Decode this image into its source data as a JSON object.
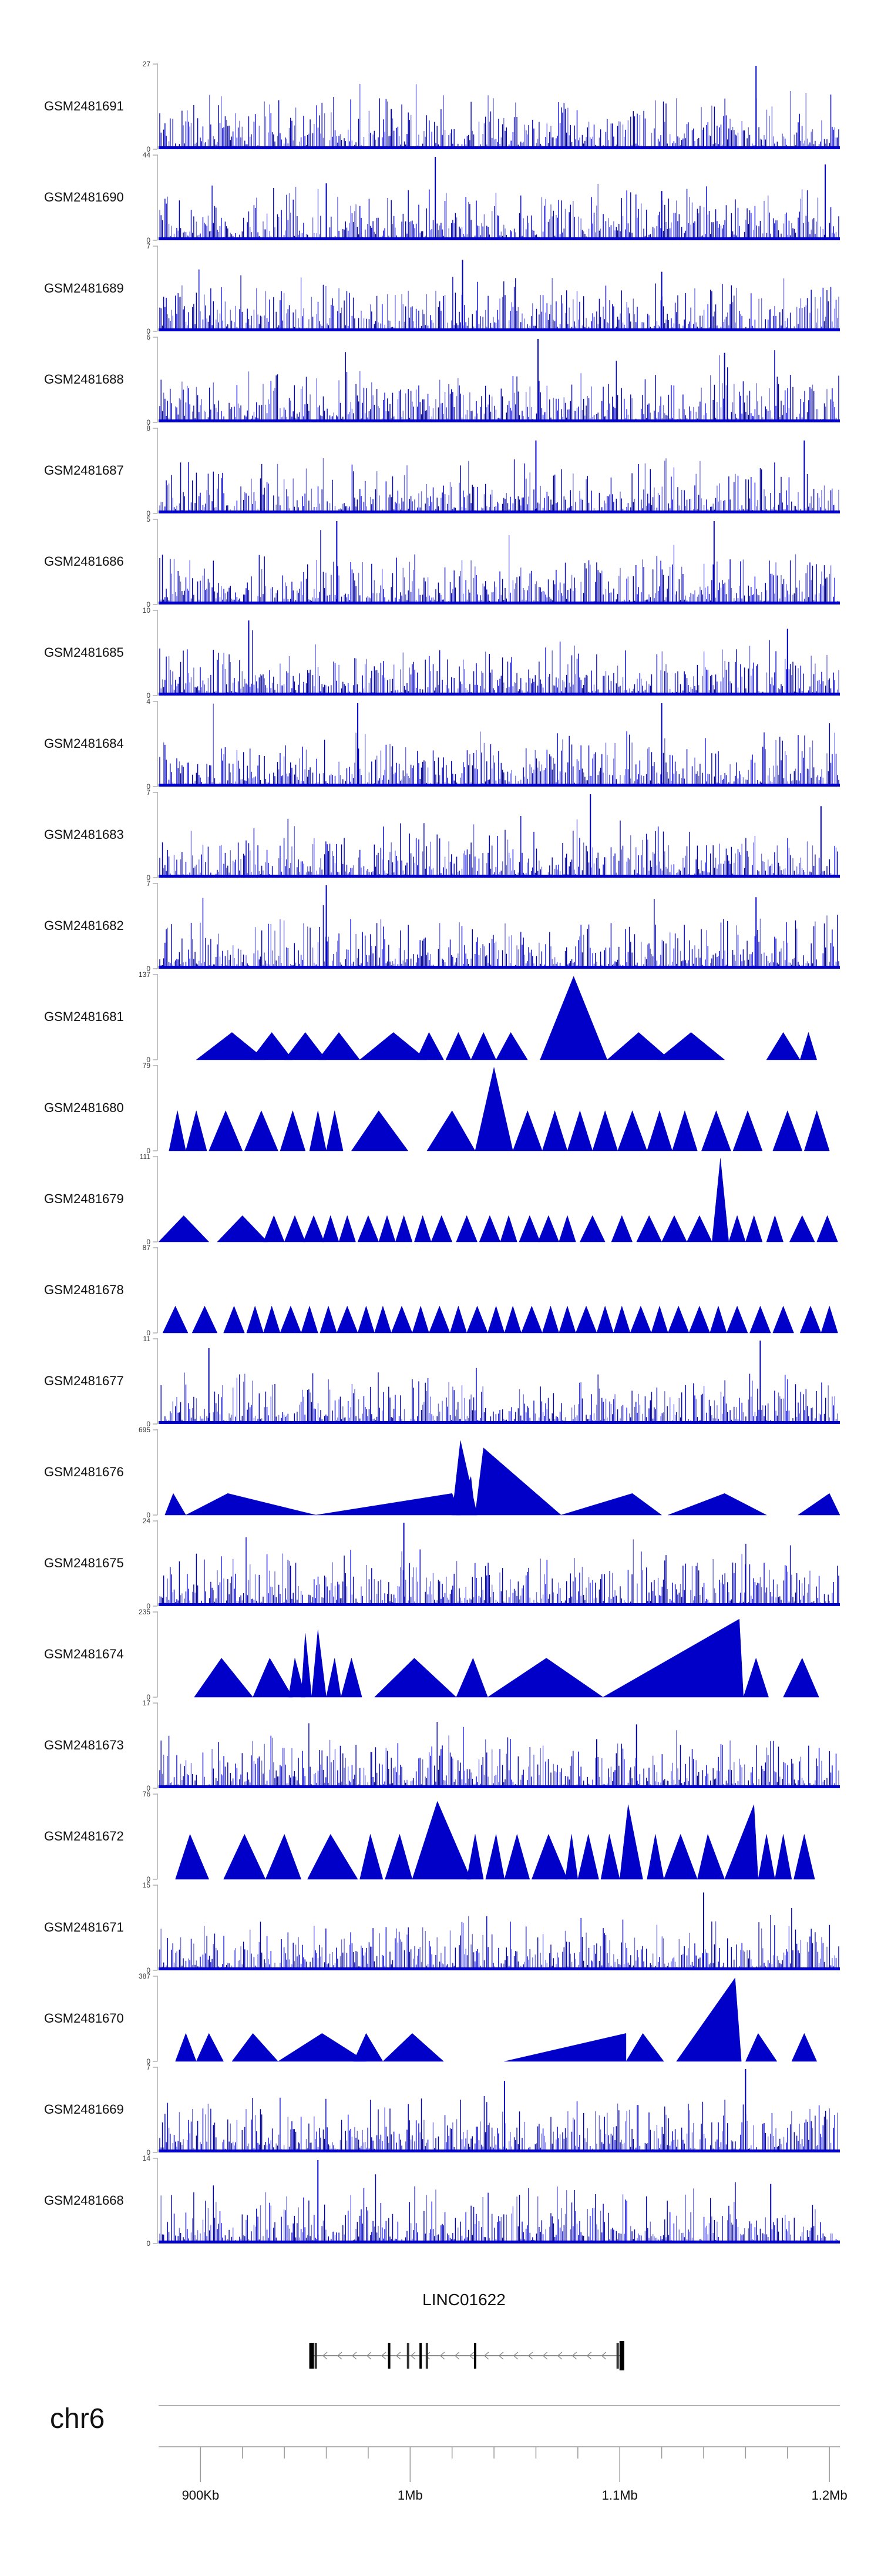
{
  "region": {
    "chromosome": "chr6",
    "range_kb": [
      880,
      1205
    ],
    "ticks": [
      {
        "kb": 900,
        "label": "900Kb"
      },
      {
        "kb": 1000,
        "label": "1Mb"
      },
      {
        "kb": 1100,
        "label": "1.1Mb"
      },
      {
        "kb": 1200,
        "label": "1.2Mb"
      }
    ],
    "minor_ticks_kb": [
      920,
      940,
      960,
      980,
      1020,
      1040,
      1060,
      1080,
      1120,
      1140,
      1160,
      1180
    ]
  },
  "gene": {
    "name": "LINC01622",
    "start_kb": 953,
    "end_kb": 1101,
    "strand": "-",
    "exons_kb": [
      953,
      955,
      990,
      999,
      1005,
      1008,
      1031,
      1099,
      1101
    ]
  },
  "colors": {
    "signal": "#0000c8",
    "signal_light": "#6f6fe0",
    "axis": "#888888",
    "text": "#111111"
  },
  "chart_data": [
    {
      "type": "area",
      "title": "GSM2481691",
      "ylim": [
        0,
        27
      ],
      "style": "dense",
      "peaks": [
        {
          "x_kb": 991,
          "y": 13
        },
        {
          "x_kb": 1165,
          "y": 27
        },
        {
          "x_kb": 1140,
          "y": 7
        }
      ]
    },
    {
      "type": "area",
      "title": "GSM2481690",
      "ylim": [
        0,
        44
      ],
      "style": "dense",
      "peaks": [
        {
          "x_kb": 1012,
          "y": 44
        },
        {
          "x_kb": 1198,
          "y": 40
        },
        {
          "x_kb": 960,
          "y": 30
        },
        {
          "x_kb": 1120,
          "y": 26
        }
      ]
    },
    {
      "type": "area",
      "title": "GSM2481689",
      "ylim": [
        0,
        7
      ],
      "style": "dense",
      "peaks": [
        {
          "x_kb": 1025,
          "y": 6
        },
        {
          "x_kb": 1120,
          "y": 5
        }
      ]
    },
    {
      "type": "area",
      "title": "GSM2481688",
      "ylim": [
        0,
        6
      ],
      "style": "dense",
      "peaks": [
        {
          "x_kb": 1061,
          "y": 6
        },
        {
          "x_kb": 1150,
          "y": 5
        }
      ]
    },
    {
      "type": "area",
      "title": "GSM2481687",
      "ylim": [
        0,
        8
      ],
      "style": "dense",
      "peaks": [
        {
          "x_kb": 1060,
          "y": 7
        },
        {
          "x_kb": 1188,
          "y": 7
        }
      ]
    },
    {
      "type": "area",
      "title": "GSM2481686",
      "ylim": [
        0,
        5
      ],
      "style": "dense",
      "peaks": [
        {
          "x_kb": 965,
          "y": 5
        },
        {
          "x_kb": 1145,
          "y": 5
        }
      ]
    },
    {
      "type": "area",
      "title": "GSM2481685",
      "ylim": [
        0,
        10
      ],
      "style": "dense",
      "peaks": [
        {
          "x_kb": 923,
          "y": 9
        },
        {
          "x_kb": 1180,
          "y": 8
        }
      ]
    },
    {
      "type": "area",
      "title": "GSM2481684",
      "ylim": [
        0,
        4
      ],
      "style": "dense",
      "peaks": [
        {
          "x_kb": 1120,
          "y": 4
        },
        {
          "x_kb": 975,
          "y": 4
        }
      ]
    },
    {
      "type": "area",
      "title": "GSM2481683",
      "ylim": [
        0,
        7
      ],
      "style": "dense",
      "peaks": [
        {
          "x_kb": 1086,
          "y": 7
        },
        {
          "x_kb": 1196,
          "y": 6
        }
      ]
    },
    {
      "type": "area",
      "title": "GSM2481682",
      "ylim": [
        0,
        7
      ],
      "style": "dense",
      "peaks": [
        {
          "x_kb": 960,
          "y": 7
        },
        {
          "x_kb": 1165,
          "y": 6
        }
      ]
    },
    {
      "type": "area",
      "title": "GSM2481681",
      "ylim": [
        0,
        137
      ],
      "style": "triangles",
      "triangles": [
        [
          898,
          915,
          931,
          45
        ],
        [
          924,
          934,
          944,
          45
        ],
        [
          940,
          950,
          960,
          45
        ],
        [
          956,
          966,
          976,
          45
        ],
        [
          976,
          992,
          1008,
          45
        ],
        [
          1003,
          1009,
          1016,
          45
        ],
        [
          1017,
          1023,
          1029,
          45
        ],
        [
          1029,
          1035,
          1041,
          45
        ],
        [
          1041,
          1048,
          1056,
          45
        ],
        [
          1062,
          1078,
          1094,
          137
        ],
        [
          1094,
          1109,
          1124,
          45
        ],
        [
          1118,
          1134,
          1150,
          45
        ],
        [
          1170,
          1178,
          1186,
          45
        ],
        [
          1186,
          1190,
          1194,
          45
        ]
      ]
    },
    {
      "type": "area",
      "title": "GSM2481680",
      "ylim": [
        0,
        79
      ],
      "style": "triangles",
      "triangles": [
        [
          885,
          889,
          893,
          38
        ],
        [
          893,
          898,
          903,
          38
        ],
        [
          904,
          912,
          920,
          38
        ],
        [
          921,
          929,
          937,
          38
        ],
        [
          938,
          944,
          950,
          38
        ],
        [
          952,
          956,
          960,
          38
        ],
        [
          960,
          964,
          968,
          38
        ],
        [
          972,
          985,
          999,
          38
        ],
        [
          1008,
          1020,
          1031,
          38
        ],
        [
          1031,
          1040,
          1049,
          79
        ],
        [
          1049,
          1056,
          1063,
          38
        ],
        [
          1063,
          1069,
          1075,
          38
        ],
        [
          1075,
          1081,
          1087,
          38
        ],
        [
          1087,
          1093,
          1099,
          38
        ],
        [
          1099,
          1106,
          1113,
          38
        ],
        [
          1113,
          1119,
          1125,
          38
        ],
        [
          1125,
          1131,
          1137,
          38
        ],
        [
          1139,
          1146,
          1153,
          38
        ],
        [
          1154,
          1161,
          1168,
          38
        ],
        [
          1173,
          1180,
          1187,
          38
        ],
        [
          1188,
          1194,
          1200,
          38
        ]
      ]
    },
    {
      "type": "area",
      "title": "GSM2481679",
      "ylim": [
        0,
        111
      ],
      "style": "triangles",
      "triangles": [
        [
          880,
          892,
          904,
          35
        ],
        [
          908,
          920,
          932,
          35
        ],
        [
          930,
          935,
          940,
          35
        ],
        [
          940,
          945,
          950,
          35
        ],
        [
          949,
          954,
          959,
          35
        ],
        [
          958,
          962,
          966,
          35
        ],
        [
          966,
          970,
          974,
          35
        ],
        [
          975,
          980,
          985,
          35
        ],
        [
          985,
          989,
          993,
          35
        ],
        [
          993,
          997,
          1001,
          35
        ],
        [
          1002,
          1006,
          1010,
          35
        ],
        [
          1010,
          1015,
          1020,
          35
        ],
        [
          1022,
          1027,
          1032,
          35
        ],
        [
          1033,
          1038,
          1043,
          35
        ],
        [
          1043,
          1047,
          1051,
          35
        ],
        [
          1052,
          1057,
          1062,
          35
        ],
        [
          1061,
          1066,
          1071,
          35
        ],
        [
          1071,
          1075,
          1079,
          35
        ],
        [
          1081,
          1087,
          1093,
          35
        ],
        [
          1096,
          1101,
          1106,
          35
        ],
        [
          1108,
          1114,
          1120,
          35
        ],
        [
          1120,
          1126,
          1132,
          35
        ],
        [
          1132,
          1138,
          1144,
          35
        ],
        [
          1144,
          1148,
          1152,
          111
        ],
        [
          1152,
          1156,
          1160,
          35
        ],
        [
          1160,
          1164,
          1168,
          35
        ],
        [
          1170,
          1174,
          1178,
          35
        ],
        [
          1181,
          1187,
          1193,
          35
        ],
        [
          1194,
          1199,
          1204,
          35
        ]
      ]
    },
    {
      "type": "area",
      "title": "GSM2481678",
      "ylim": [
        0,
        87
      ],
      "style": "triangles",
      "triangles": [
        [
          882,
          888,
          894,
          28
        ],
        [
          896,
          902,
          908,
          28
        ],
        [
          911,
          916,
          921,
          28
        ],
        [
          922,
          926,
          930,
          28
        ],
        [
          930,
          934,
          938,
          28
        ],
        [
          938,
          943,
          948,
          28
        ],
        [
          948,
          952,
          956,
          28
        ],
        [
          957,
          961,
          965,
          28
        ],
        [
          965,
          970,
          975,
          28
        ],
        [
          975,
          979,
          983,
          28
        ],
        [
          983,
          987,
          991,
          28
        ],
        [
          991,
          996,
          1001,
          28
        ],
        [
          1001,
          1005,
          1009,
          28
        ],
        [
          1009,
          1014,
          1019,
          28
        ],
        [
          1019,
          1023,
          1027,
          28
        ],
        [
          1027,
          1032,
          1037,
          28
        ],
        [
          1037,
          1041,
          1045,
          28
        ],
        [
          1045,
          1049,
          1053,
          28
        ],
        [
          1053,
          1058,
          1063,
          28
        ],
        [
          1063,
          1067,
          1071,
          28
        ],
        [
          1071,
          1075,
          1079,
          28
        ],
        [
          1079,
          1084,
          1089,
          28
        ],
        [
          1089,
          1093,
          1097,
          28
        ],
        [
          1097,
          1101,
          1105,
          28
        ],
        [
          1105,
          1110,
          1115,
          28
        ],
        [
          1115,
          1119,
          1123,
          28
        ],
        [
          1123,
          1128,
          1133,
          28
        ],
        [
          1133,
          1138,
          1143,
          28
        ],
        [
          1143,
          1147,
          1151,
          28
        ],
        [
          1151,
          1156,
          1161,
          28
        ],
        [
          1162,
          1167,
          1172,
          28
        ],
        [
          1173,
          1178,
          1183,
          28
        ],
        [
          1186,
          1191,
          1196,
          28
        ],
        [
          1196,
          1200,
          1204,
          28
        ]
      ]
    },
    {
      "type": "area",
      "title": "GSM2481677",
      "ylim": [
        0,
        11
      ],
      "style": "dense",
      "peaks": [
        {
          "x_kb": 904,
          "y": 10
        },
        {
          "x_kb": 1167,
          "y": 11
        }
      ]
    },
    {
      "type": "area",
      "title": "GSM2481676",
      "ylim": [
        0,
        695
      ],
      "style": "triangles",
      "triangles": [
        [
          883,
          887,
          893,
          180
        ],
        [
          893,
          913,
          955,
          180
        ],
        [
          955,
          1020,
          1024,
          180
        ],
        [
          1020,
          1024,
          1032,
          620
        ],
        [
          1022,
          1029,
          1031,
          320
        ],
        [
          1031,
          1035,
          1072,
          560
        ],
        [
          1072,
          1106,
          1120,
          180
        ],
        [
          1123,
          1150,
          1170,
          180
        ],
        [
          1185,
          1200,
          1205,
          180
        ]
      ]
    },
    {
      "type": "area",
      "title": "GSM2481675",
      "ylim": [
        0,
        24
      ],
      "style": "dense",
      "peaks": [
        {
          "x_kb": 997,
          "y": 24
        },
        {
          "x_kb": 1160,
          "y": 12
        }
      ]
    },
    {
      "type": "area",
      "title": "GSM2481674",
      "ylim": [
        0,
        235
      ],
      "style": "triangles",
      "triangles": [
        [
          897,
          910,
          925,
          110
        ],
        [
          925,
          933,
          944,
          110
        ],
        [
          942,
          945,
          950,
          110
        ],
        [
          948,
          950,
          953,
          180
        ],
        [
          953,
          956,
          960,
          190
        ],
        [
          960,
          964,
          967,
          110
        ],
        [
          967,
          972,
          977,
          110
        ],
        [
          983,
          1002,
          1022,
          110
        ],
        [
          1022,
          1030,
          1037,
          110
        ],
        [
          1037,
          1065,
          1092,
          110
        ],
        [
          1092,
          1157,
          1159,
          220
        ],
        [
          1159,
          1165,
          1171,
          110
        ],
        [
          1178,
          1187,
          1195,
          110
        ]
      ]
    },
    {
      "type": "area",
      "title": "GSM2481673",
      "ylim": [
        0,
        17
      ],
      "style": "dense",
      "peaks": [
        {
          "x_kb": 1108,
          "y": 13
        },
        {
          "x_kb": 1089,
          "y": 10
        }
      ]
    },
    {
      "type": "area",
      "title": "GSM2481672",
      "ylim": [
        0,
        76
      ],
      "style": "triangles",
      "triangles": [
        [
          888,
          895,
          904,
          41
        ],
        [
          911,
          921,
          931,
          41
        ],
        [
          931,
          940,
          948,
          41
        ],
        [
          951,
          962,
          975,
          41
        ],
        [
          976,
          981,
          987,
          41
        ],
        [
          988,
          995,
          1001,
          41
        ],
        [
          1001,
          1013,
          1029,
          71
        ],
        [
          1027,
          1031,
          1035,
          41
        ],
        [
          1036,
          1041,
          1045,
          41
        ],
        [
          1045,
          1051,
          1057,
          41
        ],
        [
          1058,
          1066,
          1075,
          41
        ],
        [
          1074,
          1077,
          1080,
          41
        ],
        [
          1080,
          1085,
          1090,
          41
        ],
        [
          1091,
          1095,
          1100,
          41
        ],
        [
          1100,
          1104,
          1111,
          68
        ],
        [
          1113,
          1117,
          1121,
          41
        ],
        [
          1121,
          1129,
          1137,
          41
        ],
        [
          1137,
          1142,
          1150,
          41
        ],
        [
          1150,
          1164,
          1166,
          68
        ],
        [
          1166,
          1170,
          1174,
          41
        ],
        [
          1174,
          1178,
          1182,
          41
        ],
        [
          1183,
          1188,
          1193,
          41
        ]
      ]
    },
    {
      "type": "area",
      "title": "GSM2481671",
      "ylim": [
        0,
        15
      ],
      "style": "dense",
      "peaks": [
        {
          "x_kb": 1140,
          "y": 14
        }
      ]
    },
    {
      "type": "area",
      "title": "GSM2481670",
      "ylim": [
        0,
        387
      ],
      "style": "triangles",
      "triangles": [
        [
          888,
          893,
          898,
          130
        ],
        [
          898,
          904,
          911,
          130
        ],
        [
          915,
          925,
          937,
          130
        ],
        [
          937,
          958,
          979,
          130
        ],
        [
          973,
          979,
          987,
          130
        ],
        [
          987,
          1001,
          1016,
          130
        ],
        [
          1045,
          1103,
          1103,
          130
        ],
        [
          1103,
          1111,
          1121,
          130
        ],
        [
          1127,
          1155,
          1158,
          387
        ],
        [
          1160,
          1166,
          1175,
          130
        ],
        [
          1182,
          1188,
          1194,
          130
        ]
      ]
    },
    {
      "type": "area",
      "title": "GSM2481669",
      "ylim": [
        0,
        7
      ],
      "style": "dense",
      "peaks": [
        {
          "x_kb": 1160,
          "y": 7
        },
        {
          "x_kb": 1045,
          "y": 6
        }
      ]
    },
    {
      "type": "area",
      "title": "GSM2481668",
      "ylim": [
        0,
        14
      ],
      "style": "dense",
      "peaks": [
        {
          "x_kb": 956,
          "y": 14
        },
        {
          "x_kb": 1172,
          "y": 10
        }
      ]
    }
  ]
}
